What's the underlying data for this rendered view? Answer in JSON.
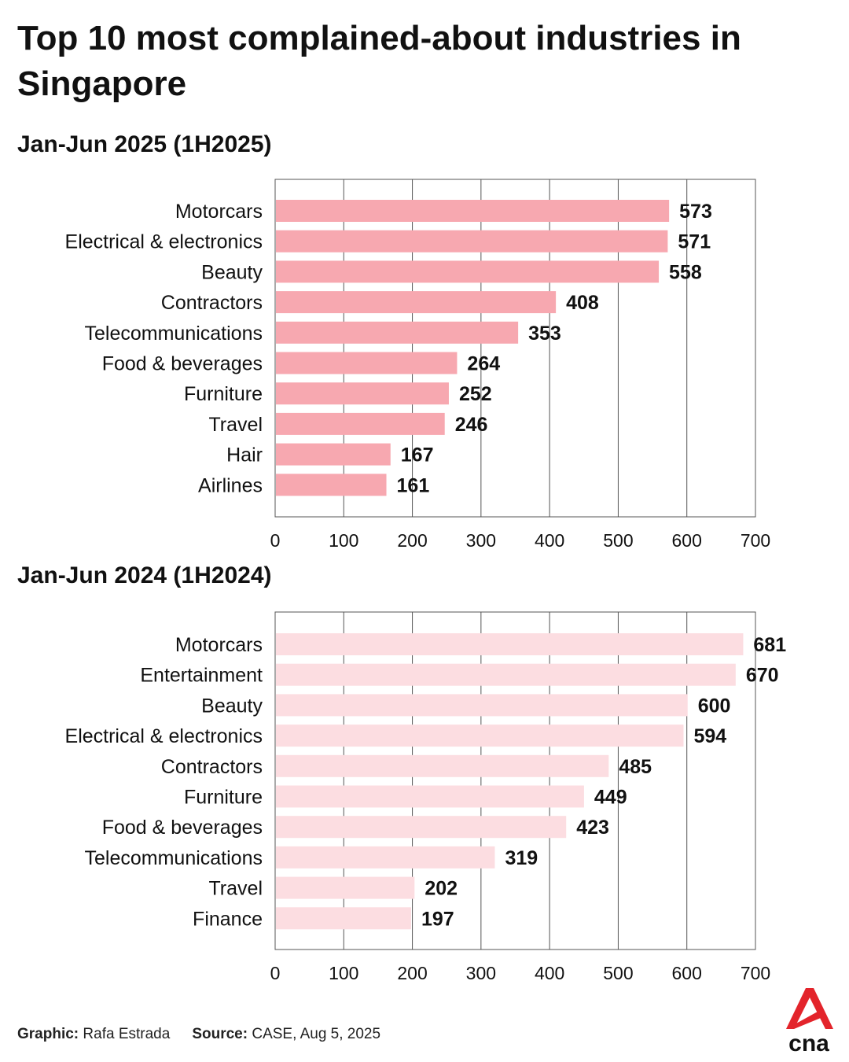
{
  "title": "Top 10 most complained-about industries in Singapore",
  "footer": {
    "graphic_label": "Graphic:",
    "graphic_value": "Rafa Estrada",
    "source_label": "Source:",
    "source_value": "CASE, Aug 5, 2025"
  },
  "logo_text": "cna",
  "colors": {
    "bar_2025": "#f7a8b0",
    "bar_2024": "#fcdde1",
    "logo_red": "#e3242b"
  },
  "chart_data": [
    {
      "type": "bar",
      "orientation": "horizontal",
      "title": "Jan-Jun 2025 (1H2025)",
      "categories": [
        "Motorcars",
        "Electrical & electronics",
        "Beauty",
        "Contractors",
        "Telecommunications",
        "Food & beverages",
        "Furniture",
        "Travel",
        "Hair",
        "Airlines"
      ],
      "values": [
        573,
        571,
        558,
        408,
        353,
        264,
        252,
        246,
        167,
        161
      ],
      "xlim": [
        0,
        700
      ],
      "ticks": [
        0,
        100,
        200,
        300,
        400,
        500,
        600,
        700
      ],
      "grid": true,
      "xlabel": "",
      "ylabel": ""
    },
    {
      "type": "bar",
      "orientation": "horizontal",
      "title": "Jan-Jun 2024 (1H2024)",
      "categories": [
        "Motorcars",
        "Entertainment",
        "Beauty",
        "Electrical & electronics",
        "Contractors",
        "Furniture",
        "Food & beverages",
        "Telecommunications",
        "Travel",
        "Finance"
      ],
      "values": [
        681,
        670,
        600,
        594,
        485,
        449,
        423,
        319,
        202,
        197
      ],
      "xlim": [
        0,
        700
      ],
      "ticks": [
        0,
        100,
        200,
        300,
        400,
        500,
        600,
        700
      ],
      "grid": true,
      "xlabel": "",
      "ylabel": ""
    }
  ]
}
